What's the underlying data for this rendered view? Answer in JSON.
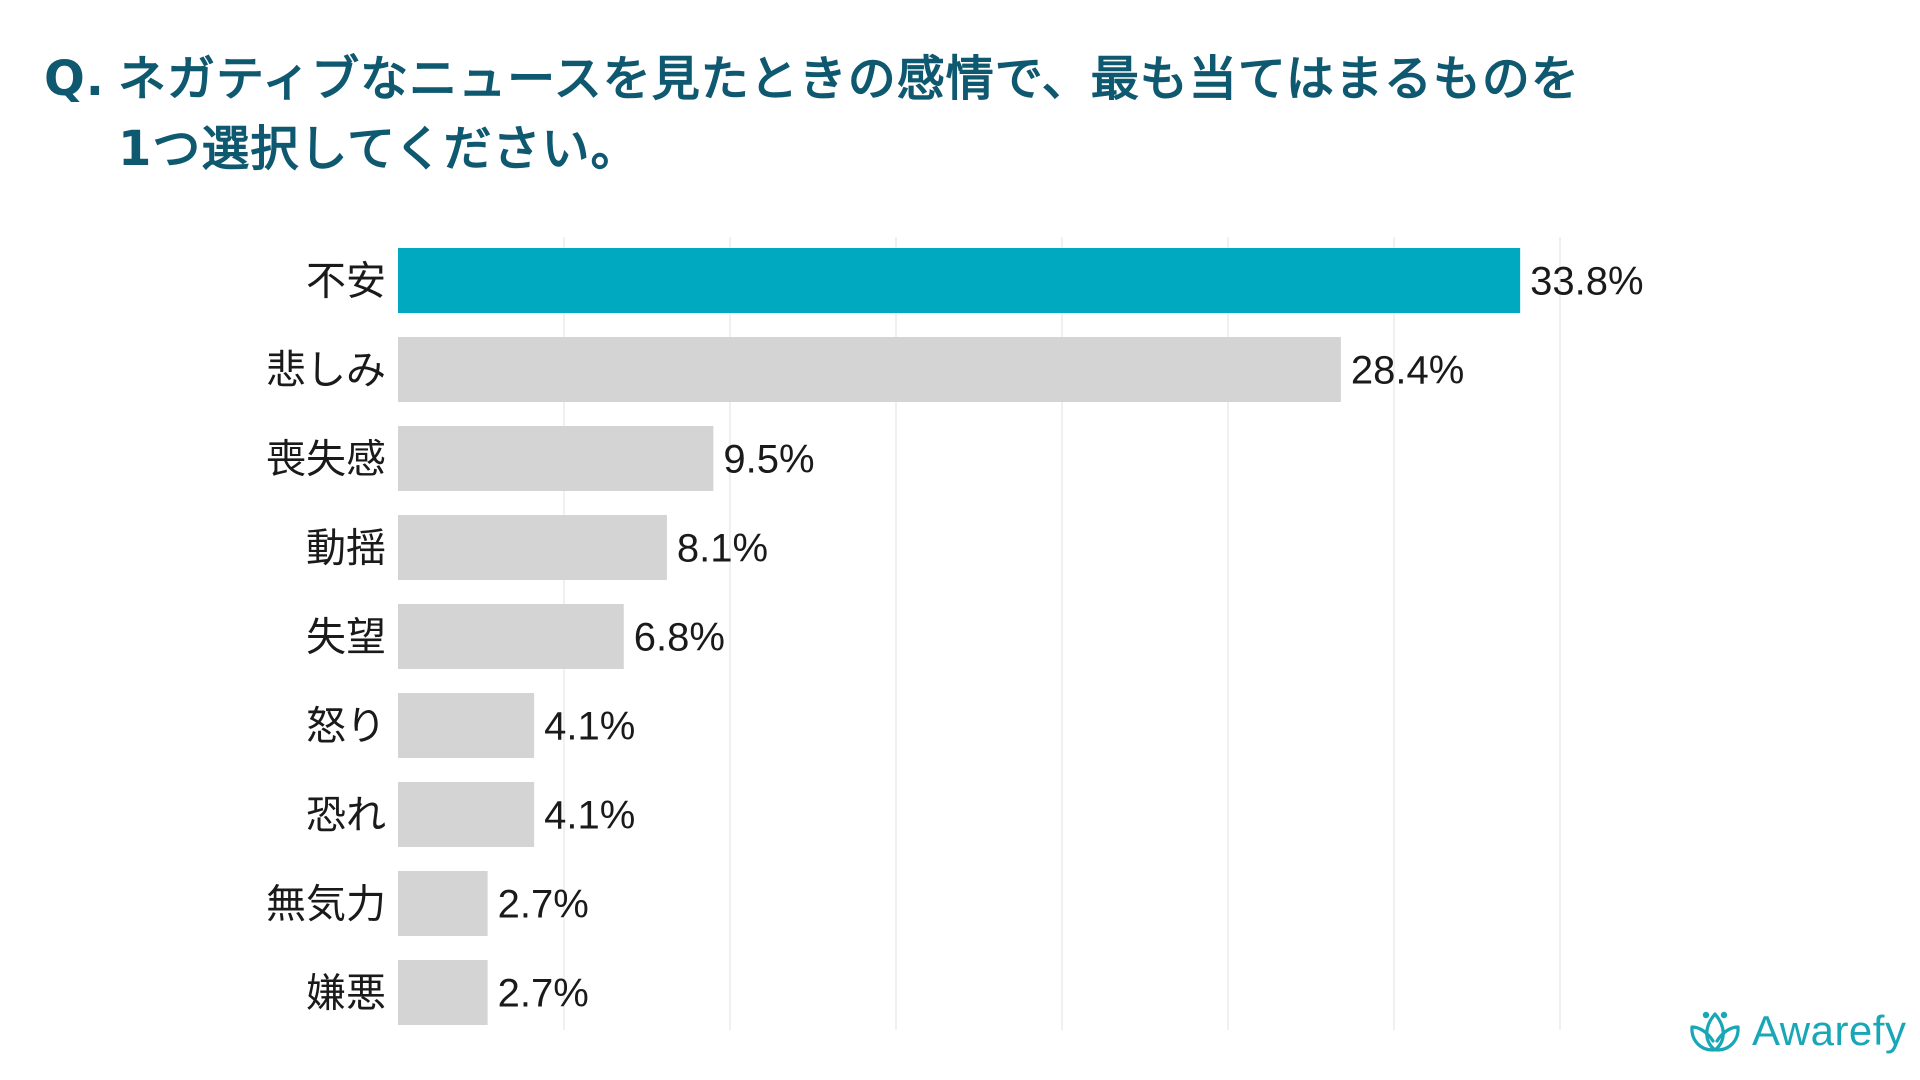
{
  "question": {
    "prefix": "Q.",
    "line1": "ネガティブなニュースを見たときの感情で、最も当てはまるものを",
    "line2": "1つ選択してください。"
  },
  "brand": {
    "name": "Awarefy",
    "logo_icon": "lotus-icon"
  },
  "colors": {
    "highlight": "#00a9bf",
    "bar": "#d4d4d4",
    "title": "#0e5870",
    "brand": "#19a7b8"
  },
  "chart_data": {
    "type": "bar",
    "orientation": "horizontal",
    "categories": [
      "不安",
      "悲しみ",
      "喪失感",
      "動揺",
      "失望",
      "怒り",
      "恐れ",
      "無気力",
      "嫌悪"
    ],
    "values": [
      33.8,
      28.4,
      9.5,
      8.1,
      6.8,
      4.1,
      4.1,
      2.7,
      2.7
    ],
    "value_labels": [
      "33.8%",
      "28.4%",
      "9.5%",
      "8.1%",
      "6.8%",
      "4.1%",
      "4.1%",
      "2.7%",
      "2.7%"
    ],
    "highlight_index": 0,
    "xlim": [
      0,
      35
    ],
    "grid": true,
    "grid_step": 5
  }
}
